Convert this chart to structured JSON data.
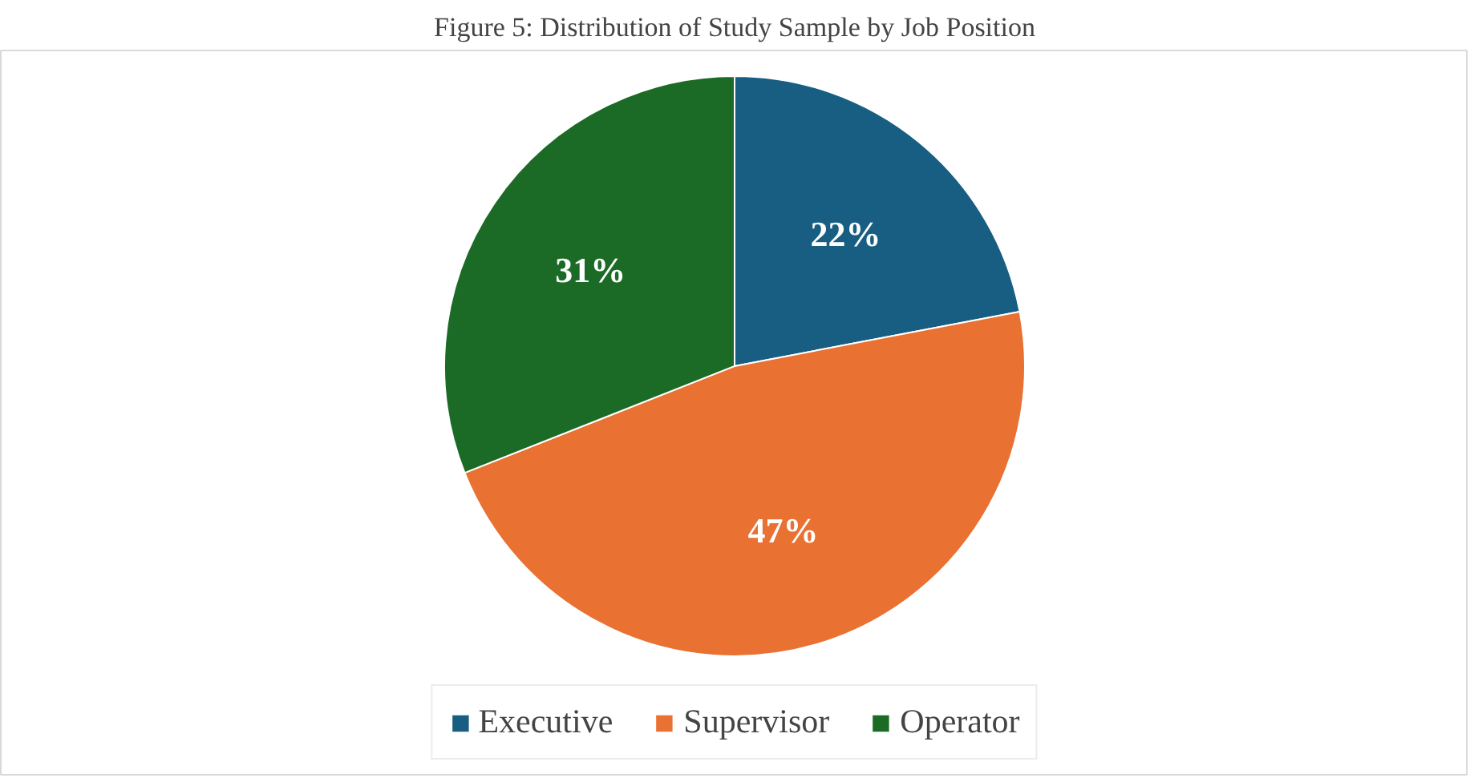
{
  "chart_data": {
    "type": "pie",
    "title": "Figure 5: Distribution of Study Sample by Job Position",
    "categories": [
      "Executive",
      "Supervisor",
      "Operator"
    ],
    "values": [
      22,
      47,
      31
    ],
    "value_labels": [
      "22%",
      "47%",
      "31%"
    ],
    "colors": [
      "#175e82",
      "#e97132",
      "#1b6b27"
    ],
    "legend": "bottom"
  }
}
